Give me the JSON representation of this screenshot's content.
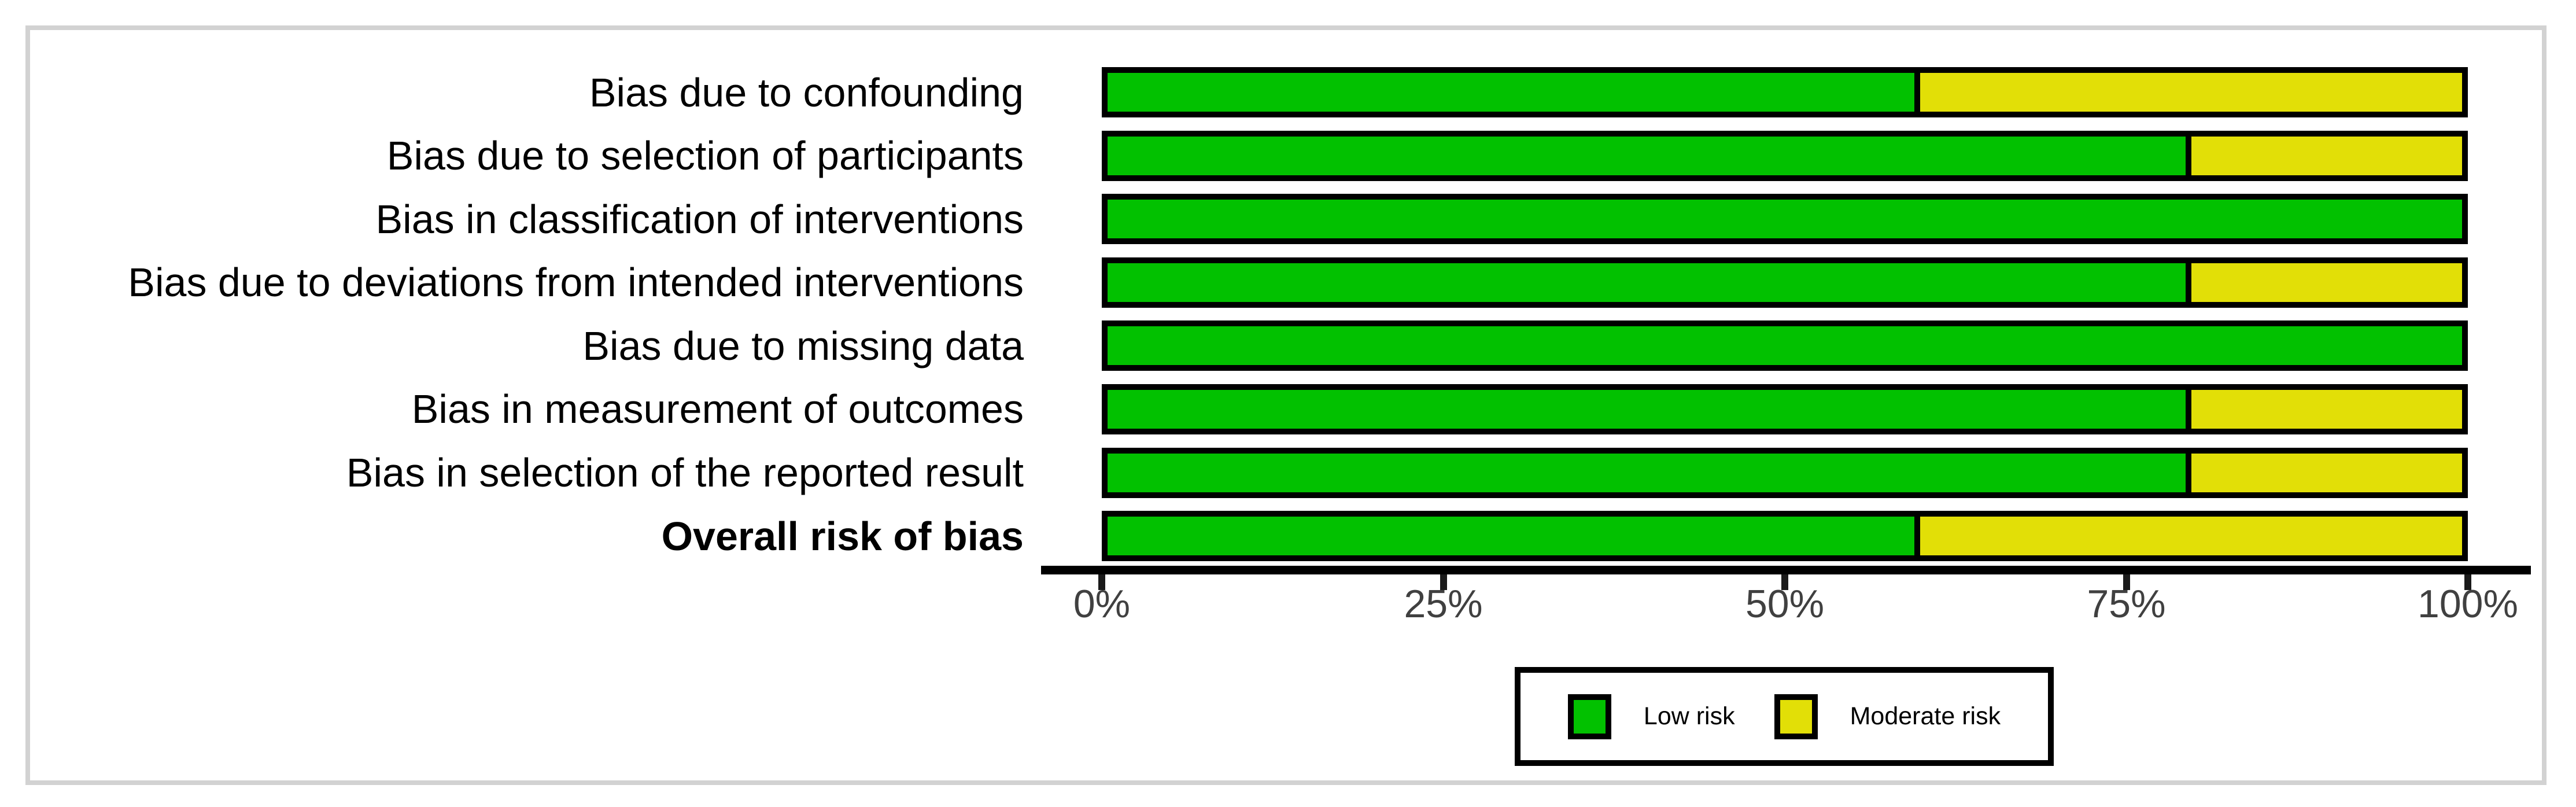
{
  "chart_data": {
    "type": "bar",
    "orientation": "horizontal",
    "stacked": true,
    "units": "percent",
    "categories": [
      "Bias due to confounding",
      "Bias due to selection of participants",
      "Bias in classification of interventions",
      "Bias due to deviations from intended interventions",
      "Bias due to missing data",
      "Bias in measurement of outcomes",
      "Bias in selection of the reported result",
      "Overall risk of bias"
    ],
    "series": [
      {
        "name": "Low risk",
        "color": "#02C100",
        "values": [
          60,
          80,
          100,
          80,
          100,
          80,
          80,
          60
        ]
      },
      {
        "name": "Moderate risk",
        "color": "#E2DF07",
        "values": [
          40,
          20,
          0,
          20,
          0,
          20,
          20,
          40
        ]
      }
    ],
    "x_ticks": [
      "0%",
      "25%",
      "50%",
      "75%",
      "100%"
    ],
    "xlim": [
      0,
      100
    ],
    "grid": false,
    "legend_position": "bottom-center",
    "emphasized_category": "Overall risk of bias"
  },
  "colors": {
    "low_risk": "#02C100",
    "moderate_risk": "#E2DF07",
    "bar_border": "#000000",
    "axis_text": "#404040",
    "outer_frame": "#D2D2D2"
  }
}
